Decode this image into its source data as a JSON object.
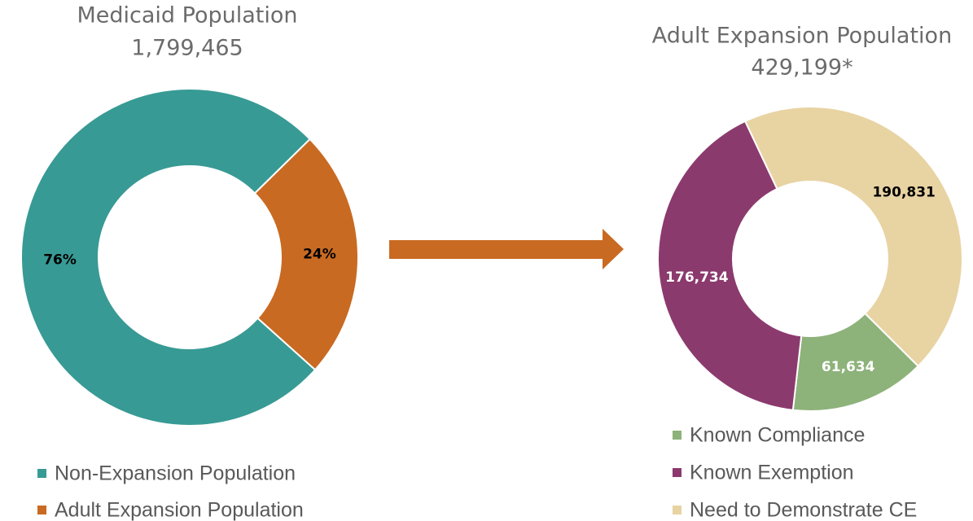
{
  "chart_data": [
    {
      "type": "donut",
      "title": "Medicaid Population",
      "subtitle": "1,799,465",
      "categories": [
        "Non-Expansion Population",
        "Adult Expansion Population"
      ],
      "values": [
        76,
        24
      ],
      "value_labels": [
        "76%",
        "24%"
      ],
      "colors": [
        "#389a94",
        "#c96a22"
      ]
    },
    {
      "type": "donut",
      "title": "Adult Expansion Population",
      "subtitle": "429,199*",
      "categories": [
        "Known Compliance",
        "Known Exemption",
        "Need to Demonstrate CE"
      ],
      "values": [
        61634,
        176734,
        190831
      ],
      "value_labels": [
        "61,634",
        "176,734",
        "190,831"
      ],
      "colors": [
        "#8db27a",
        "#8b3a6e",
        "#e8d3a3"
      ]
    }
  ]
}
